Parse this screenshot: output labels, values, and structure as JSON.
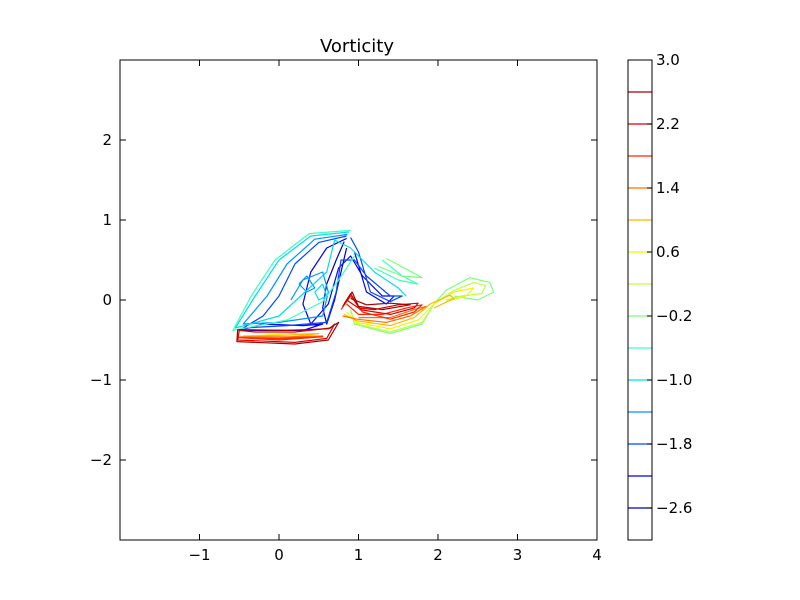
{
  "chart_data": {
    "type": "contour",
    "title": "Vorticity",
    "xlabel": "",
    "ylabel": "",
    "xlim": [
      -2,
      4
    ],
    "ylim": [
      -3,
      3
    ],
    "x_ticks": [
      -1,
      0,
      1,
      2,
      3,
      4
    ],
    "y_ticks": [
      -2,
      -1,
      0,
      1,
      2
    ],
    "x_tick_labels": [
      "−1",
      "0",
      "1",
      "2",
      "3",
      "4"
    ],
    "y_tick_labels": [
      "−2",
      "−1",
      "0",
      "1",
      "2"
    ],
    "grid": false,
    "colorbar": {
      "range": [
        -3.0,
        3.0
      ],
      "levels": [
        -2.6,
        -2.2,
        -1.8,
        -1.4,
        -1.0,
        -0.6,
        -0.2,
        0.2,
        0.6,
        1.0,
        1.4,
        1.8,
        2.2,
        2.6
      ],
      "level_colors": [
        "#0000b8",
        "#0000f0",
        "#0048ff",
        "#0094ff",
        "#00dcf0",
        "#3cffbc",
        "#7cff7c",
        "#bcff3c",
        "#f0f800",
        "#ffb800",
        "#ff7000",
        "#ff2800",
        "#dc0000",
        "#a80000"
      ],
      "tick_values": [
        3.0,
        2.2,
        1.4,
        0.6,
        -0.2,
        -1.0,
        -1.8,
        -2.6
      ],
      "tick_labels": [
        "3.0",
        "2.2",
        "1.4",
        "0.6",
        "−0.2",
        "−1.0",
        "−1.8",
        "−2.6"
      ]
    },
    "contour_levels": [
      {
        "level": -2.6,
        "color": "#0000b8",
        "curves": [
          [
            [
              0.82,
              0.73
            ],
            [
              0.72,
              0.5
            ],
            [
              0.6,
              0.2
            ],
            [
              0.55,
              -0.1
            ],
            [
              0.6,
              -0.3
            ],
            [
              0.7,
              0.0
            ],
            [
              0.78,
              0.35
            ],
            [
              0.85,
              0.65
            ]
          ]
        ]
      },
      {
        "level": -2.2,
        "color": "#0000f0",
        "curves": [
          [
            [
              0.85,
              0.77
            ],
            [
              0.6,
              0.65
            ],
            [
              0.4,
              0.35
            ],
            [
              0.3,
              -0.05
            ],
            [
              0.4,
              -0.3
            ],
            [
              0.62,
              -0.05
            ],
            [
              0.75,
              0.4
            ],
            [
              0.9,
              0.55
            ],
            [
              1.05,
              0.3
            ],
            [
              1.3,
              0.05
            ],
            [
              1.45,
              0.05
            ],
            [
              1.35,
              -0.05
            ],
            [
              1.1,
              0.1
            ],
            [
              0.95,
              0.6
            ]
          ],
          [
            [
              -0.5,
              -0.38
            ],
            [
              -0.2,
              -0.3
            ],
            [
              0.3,
              -0.32
            ],
            [
              0.55,
              -0.3
            ],
            [
              0.3,
              -0.38
            ],
            [
              -0.3,
              -0.38
            ],
            [
              -0.5,
              -0.38
            ]
          ]
        ]
      },
      {
        "level": -1.8,
        "color": "#0048ff",
        "curves": [
          [
            [
              0.85,
              0.8
            ],
            [
              0.5,
              0.72
            ],
            [
              0.2,
              0.45
            ],
            [
              0.0,
              0.05
            ],
            [
              -0.2,
              -0.2
            ],
            [
              -0.45,
              -0.35
            ],
            [
              0.1,
              -0.32
            ],
            [
              0.6,
              -0.28
            ],
            [
              0.72,
              0.1
            ],
            [
              0.78,
              0.5
            ],
            [
              0.95,
              0.5
            ],
            [
              1.1,
              0.3
            ],
            [
              1.4,
              0.05
            ],
            [
              1.55,
              0.05
            ],
            [
              1.4,
              -0.02
            ],
            [
              1.15,
              0.1
            ],
            [
              1.0,
              0.6
            ],
            [
              0.9,
              0.78
            ]
          ]
        ]
      },
      {
        "level": -1.4,
        "color": "#0094ff",
        "curves": [
          [
            [
              0.86,
              0.82
            ],
            [
              0.45,
              0.76
            ],
            [
              0.1,
              0.45
            ],
            [
              -0.15,
              0.05
            ],
            [
              -0.45,
              -0.3
            ],
            [
              0.0,
              -0.28
            ],
            [
              0.55,
              -0.2
            ],
            [
              0.62,
              0.1
            ],
            [
              0.55,
              0.35
            ],
            [
              0.3,
              0.25
            ],
            [
              0.15,
              0.0
            ]
          ],
          [
            [
              0.25,
              0.2
            ],
            [
              0.35,
              0.1
            ],
            [
              0.45,
              0.15
            ],
            [
              0.35,
              0.3
            ],
            [
              0.25,
              0.2
            ]
          ]
        ]
      },
      {
        "level": -1.0,
        "color": "#00dcf0",
        "curves": [
          [
            [
              0.88,
              0.85
            ],
            [
              0.4,
              0.8
            ],
            [
              0.0,
              0.5
            ],
            [
              -0.3,
              0.05
            ],
            [
              -0.55,
              -0.35
            ],
            [
              0.0,
              -0.2
            ],
            [
              0.6,
              0.35
            ],
            [
              0.7,
              0.75
            ],
            [
              0.9,
              0.65
            ],
            [
              1.2,
              0.35
            ],
            [
              1.5,
              0.15
            ],
            [
              1.6,
              0.05
            ]
          ],
          [
            [
              0.55,
              0.2
            ],
            [
              0.45,
              0.1
            ],
            [
              0.5,
              0.0
            ],
            [
              0.6,
              0.05
            ],
            [
              0.55,
              0.2
            ]
          ]
        ]
      },
      {
        "level": -0.6,
        "color": "#3cffbc",
        "curves": [
          [
            [
              0.9,
              0.87
            ],
            [
              0.38,
              0.83
            ],
            [
              -0.05,
              0.5
            ],
            [
              -0.35,
              0.05
            ],
            [
              -0.58,
              -0.38
            ],
            [
              0.1,
              -0.25
            ],
            [
              0.55,
              -0.02
            ],
            [
              0.75,
              0.25
            ],
            [
              0.95,
              0.55
            ]
          ],
          [
            [
              1.2,
              0.4
            ],
            [
              1.5,
              0.25
            ],
            [
              1.75,
              0.2
            ],
            [
              1.55,
              0.3
            ],
            [
              1.3,
              0.5
            ]
          ]
        ]
      },
      {
        "level": -0.2,
        "color": "#7cff7c",
        "curves": [
          [
            [
              1.25,
              0.42
            ],
            [
              1.55,
              0.3
            ],
            [
              1.8,
              0.28
            ],
            [
              1.65,
              0.36
            ],
            [
              1.35,
              0.52
            ]
          ],
          [
            [
              0.9,
              -0.12
            ],
            [
              0.95,
              -0.3
            ],
            [
              1.4,
              -0.42
            ],
            [
              1.8,
              -0.3
            ],
            [
              1.95,
              -0.05
            ],
            [
              2.1,
              0.12
            ],
            [
              2.4,
              0.28
            ],
            [
              2.65,
              0.22
            ],
            [
              2.7,
              0.1
            ],
            [
              2.5,
              0.0
            ],
            [
              2.2,
              0.05
            ]
          ]
        ]
      },
      {
        "level": 0.2,
        "color": "#bcff3c",
        "curves": [
          [
            [
              0.9,
              -0.15
            ],
            [
              0.98,
              -0.3
            ],
            [
              1.4,
              -0.4
            ],
            [
              1.8,
              -0.28
            ],
            [
              1.95,
              -0.05
            ],
            [
              2.2,
              0.12
            ],
            [
              2.45,
              0.22
            ],
            [
              2.6,
              0.18
            ],
            [
              2.55,
              0.08
            ],
            [
              2.3,
              0.05
            ],
            [
              2.1,
              0.0
            ]
          ]
        ]
      },
      {
        "level": 0.6,
        "color": "#f0f800",
        "curves": [
          [
            [
              0.85,
              -0.15
            ],
            [
              0.98,
              -0.28
            ],
            [
              1.4,
              -0.36
            ],
            [
              1.75,
              -0.25
            ],
            [
              1.95,
              -0.05
            ],
            [
              2.2,
              0.1
            ],
            [
              2.45,
              0.15
            ],
            [
              2.35,
              0.05
            ],
            [
              2.1,
              -0.02
            ]
          ],
          [
            [
              -0.35,
              -0.45
            ],
            [
              0.1,
              -0.48
            ],
            [
              0.45,
              -0.42
            ],
            [
              0.1,
              -0.42
            ],
            [
              -0.35,
              -0.45
            ]
          ]
        ]
      },
      {
        "level": 1.0,
        "color": "#ffb800",
        "curves": [
          [
            [
              0.82,
              -0.18
            ],
            [
              0.98,
              -0.26
            ],
            [
              1.4,
              -0.32
            ],
            [
              1.7,
              -0.22
            ],
            [
              1.9,
              -0.05
            ],
            [
              2.15,
              0.06
            ],
            [
              2.2,
              0.02
            ],
            [
              1.95,
              -0.1
            ]
          ],
          [
            [
              -0.45,
              -0.45
            ],
            [
              0.1,
              -0.47
            ],
            [
              0.5,
              -0.42
            ],
            [
              0.1,
              -0.44
            ],
            [
              -0.45,
              -0.45
            ]
          ]
        ]
      },
      {
        "level": 1.4,
        "color": "#ff7000",
        "curves": [
          [
            [
              0.8,
              -0.2
            ],
            [
              0.98,
              -0.24
            ],
            [
              1.35,
              -0.28
            ],
            [
              1.65,
              -0.2
            ],
            [
              1.85,
              -0.08
            ],
            [
              1.7,
              -0.12
            ],
            [
              1.4,
              -0.22
            ],
            [
              1.0,
              -0.22
            ]
          ],
          [
            [
              -0.5,
              -0.46
            ],
            [
              0.0,
              -0.49
            ],
            [
              0.55,
              -0.45
            ],
            [
              0.1,
              -0.46
            ],
            [
              -0.5,
              -0.46
            ]
          ]
        ]
      },
      {
        "level": 1.8,
        "color": "#ff2800",
        "curves": [
          [
            [
              0.78,
              -0.12
            ],
            [
              0.9,
              0.05
            ],
            [
              1.05,
              -0.15
            ],
            [
              1.4,
              -0.24
            ],
            [
              1.7,
              -0.15
            ],
            [
              1.8,
              -0.06
            ],
            [
              1.6,
              -0.1
            ],
            [
              1.3,
              -0.18
            ],
            [
              1.0,
              -0.18
            ],
            [
              0.85,
              -0.05
            ]
          ],
          [
            [
              -0.52,
              -0.47
            ],
            [
              0.0,
              -0.5
            ],
            [
              0.55,
              -0.46
            ],
            [
              0.0,
              -0.48
            ],
            [
              -0.52,
              -0.47
            ]
          ]
        ]
      },
      {
        "level": 2.2,
        "color": "#dc0000",
        "curves": [
          [
            [
              0.8,
              -0.08
            ],
            [
              0.9,
              0.08
            ],
            [
              1.02,
              -0.12
            ],
            [
              1.4,
              -0.18
            ],
            [
              1.7,
              -0.1
            ],
            [
              1.75,
              -0.04
            ],
            [
              1.5,
              -0.06
            ],
            [
              1.2,
              -0.12
            ],
            [
              1.0,
              -0.1
            ],
            [
              0.85,
              0.0
            ]
          ],
          [
            [
              -0.5,
              -0.38
            ],
            [
              -0.52,
              -0.5
            ],
            [
              0.2,
              -0.53
            ],
            [
              0.6,
              -0.48
            ],
            [
              0.7,
              -0.3
            ],
            [
              0.65,
              -0.35
            ],
            [
              0.2,
              -0.4
            ],
            [
              -0.3,
              -0.4
            ],
            [
              -0.5,
              -0.38
            ]
          ]
        ]
      },
      {
        "level": 2.6,
        "color": "#a80000",
        "curves": [
          [
            [
              0.82,
              -0.05
            ],
            [
              0.92,
              0.1
            ],
            [
              1.0,
              -0.08
            ],
            [
              1.3,
              -0.12
            ],
            [
              1.65,
              -0.06
            ],
            [
              1.4,
              -0.04
            ],
            [
              1.1,
              -0.06
            ],
            [
              0.9,
              0.02
            ]
          ],
          [
            [
              -0.52,
              -0.37
            ],
            [
              -0.53,
              -0.52
            ],
            [
              0.2,
              -0.55
            ],
            [
              0.62,
              -0.5
            ],
            [
              0.75,
              -0.28
            ],
            [
              0.62,
              -0.36
            ],
            [
              0.1,
              -0.38
            ],
            [
              -0.52,
              -0.37
            ]
          ]
        ]
      }
    ]
  }
}
